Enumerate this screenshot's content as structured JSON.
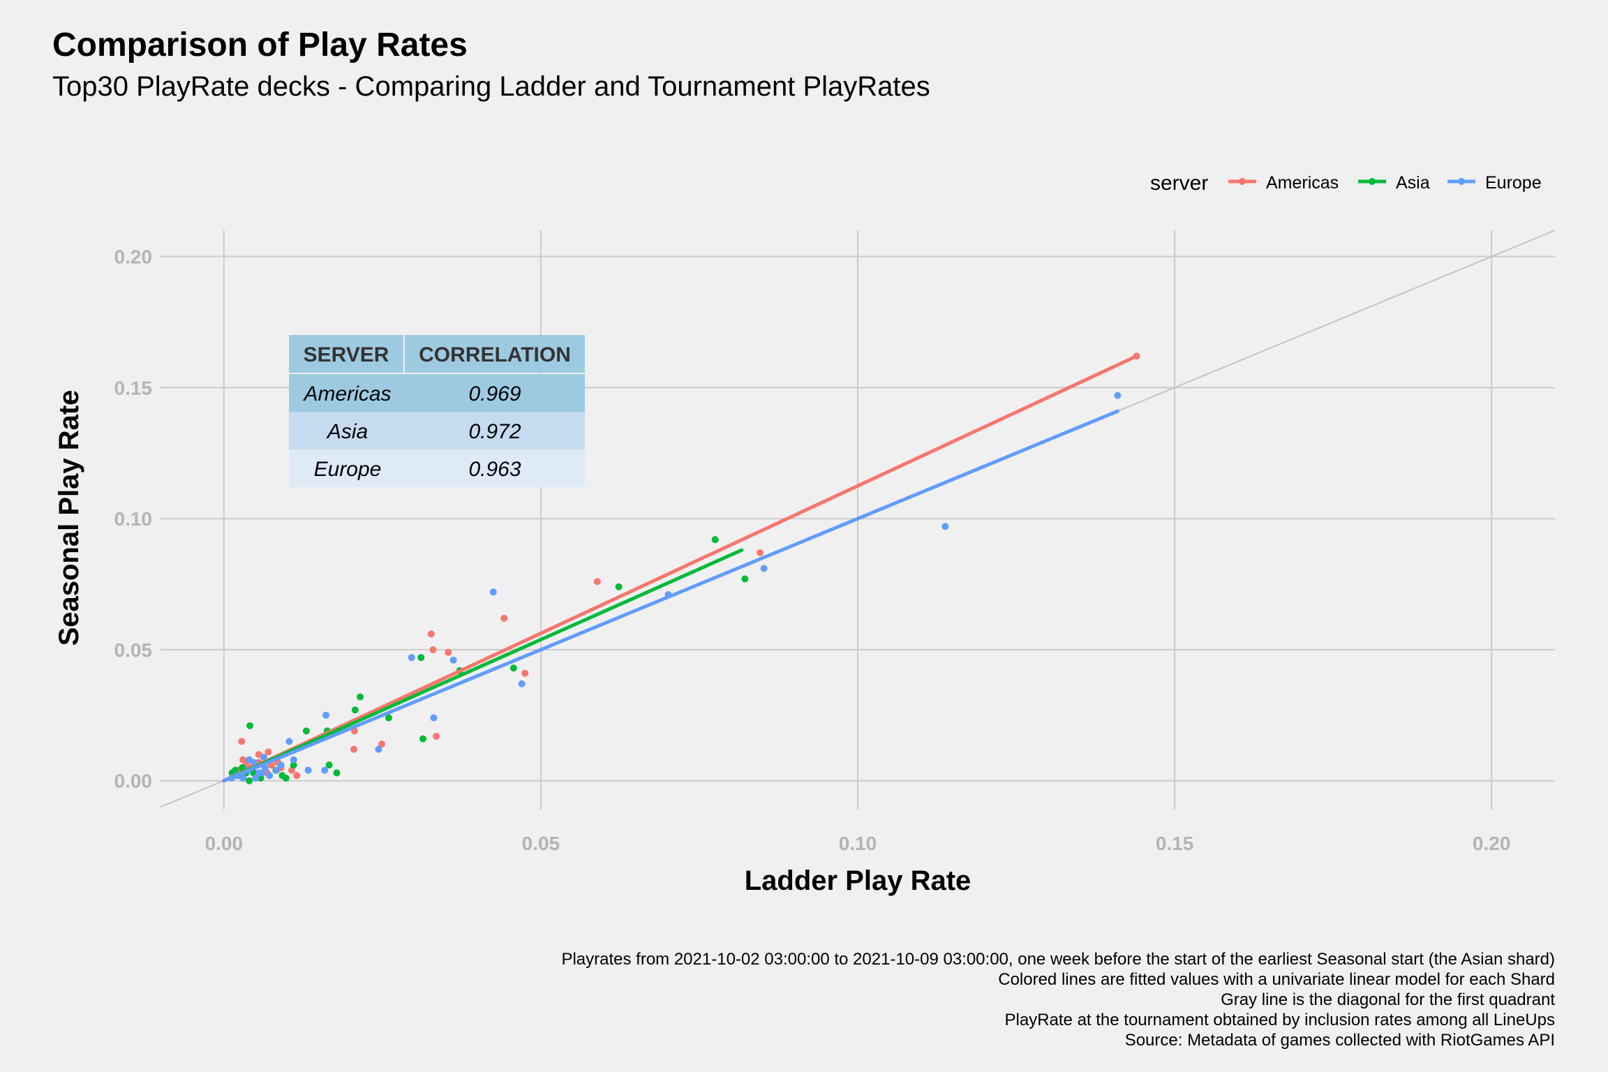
{
  "chart_data": {
    "type": "scatter",
    "title": "Comparison of Play Rates",
    "subtitle": "Top30 PlayRate decks - Comparing Ladder and Tournament PlayRates",
    "xlabel": "Ladder Play Rate",
    "ylabel": "Seasonal Play Rate",
    "xlim": [
      -0.01,
      0.21
    ],
    "ylim": [
      -0.011,
      0.21
    ],
    "x_ticks": [
      0.0,
      0.05,
      0.1,
      0.15,
      0.2
    ],
    "x_tick_labels": [
      "0.00",
      "0.05",
      "0.10",
      "0.15",
      "0.20"
    ],
    "y_ticks": [
      0.0,
      0.05,
      0.1,
      0.15,
      0.2
    ],
    "y_tick_labels": [
      "0.00",
      "0.05",
      "0.10",
      "0.15",
      "0.20"
    ],
    "grid": true,
    "legend": {
      "title": "server",
      "position": "top-right"
    },
    "diagonal": {
      "color": "#c4c4c4",
      "from": [
        -0.01,
        -0.01
      ],
      "to": [
        0.21,
        0.21
      ]
    },
    "series": [
      {
        "name": "Americas",
        "color": "#F8766D",
        "fit": {
          "x0": 0.0,
          "y0": 0.0,
          "x1": 0.144,
          "y1": 0.162
        },
        "points": [
          [
            0.144,
            0.162
          ],
          [
            0.0846,
            0.087
          ],
          [
            0.0589,
            0.076
          ],
          [
            0.0442,
            0.062
          ],
          [
            0.0475,
            0.041
          ],
          [
            0.0327,
            0.056
          ],
          [
            0.033,
            0.05
          ],
          [
            0.0354,
            0.049
          ],
          [
            0.0335,
            0.017
          ],
          [
            0.0206,
            0.019
          ],
          [
            0.0249,
            0.014
          ],
          [
            0.0205,
            0.012
          ],
          [
            0.0028,
            0.015
          ],
          [
            0.007,
            0.011
          ],
          [
            0.0055,
            0.01
          ],
          [
            0.0085,
            0.007
          ],
          [
            0.0107,
            0.004
          ],
          [
            0.0115,
            0.002
          ],
          [
            0.009,
            0.005
          ],
          [
            0.0035,
            0.006
          ],
          [
            0.0045,
            0.004
          ],
          [
            0.002,
            0.003
          ],
          [
            0.0055,
            0.007
          ],
          [
            0.003,
            0.008
          ],
          [
            0.0013,
            0.003
          ],
          [
            0.0075,
            0.006
          ],
          [
            0.004,
            0.005
          ],
          [
            0.0022,
            0.004
          ],
          [
            0.0068,
            0.003
          ],
          [
            0.005,
            0.002
          ]
        ]
      },
      {
        "name": "Asia",
        "color": "#00BA38",
        "fit": {
          "x0": 0.0,
          "y0": 0.0,
          "x1": 0.0817,
          "y1": 0.088
        },
        "points": [
          [
            0.0775,
            0.092
          ],
          [
            0.0822,
            0.077
          ],
          [
            0.0623,
            0.074
          ],
          [
            0.0457,
            0.043
          ],
          [
            0.0311,
            0.047
          ],
          [
            0.0372,
            0.042
          ],
          [
            0.0314,
            0.016
          ],
          [
            0.0215,
            0.032
          ],
          [
            0.0207,
            0.027
          ],
          [
            0.026,
            0.024
          ],
          [
            0.0163,
            0.019
          ],
          [
            0.013,
            0.019
          ],
          [
            0.0166,
            0.006
          ],
          [
            0.0178,
            0.003
          ],
          [
            0.0041,
            0.021
          ],
          [
            0.0092,
            0.002
          ],
          [
            0.0098,
            0.001
          ],
          [
            0.0029,
            0.005
          ],
          [
            0.0013,
            0.003
          ],
          [
            0.004,
            0.0
          ],
          [
            0.003,
            0.001
          ],
          [
            0.0052,
            0.002
          ],
          [
            0.0018,
            0.004
          ],
          [
            0.0065,
            0.005
          ],
          [
            0.0082,
            0.004
          ],
          [
            0.011,
            0.006
          ],
          [
            0.0025,
            0.002
          ],
          [
            0.0047,
            0.003
          ],
          [
            0.0058,
            0.001
          ],
          [
            0.0035,
            0.003
          ]
        ]
      },
      {
        "name": "Europe",
        "color": "#619CFF",
        "fit": {
          "x0": 0.0,
          "y0": 0.0,
          "x1": 0.141,
          "y1": 0.141
        },
        "points": [
          [
            0.141,
            0.147
          ],
          [
            0.1138,
            0.097
          ],
          [
            0.0852,
            0.081
          ],
          [
            0.0701,
            0.071
          ],
          [
            0.0425,
            0.072
          ],
          [
            0.047,
            0.037
          ],
          [
            0.0296,
            0.047
          ],
          [
            0.0362,
            0.046
          ],
          [
            0.0331,
            0.024
          ],
          [
            0.0161,
            0.025
          ],
          [
            0.0244,
            0.012
          ],
          [
            0.0103,
            0.015
          ],
          [
            0.0159,
            0.004
          ],
          [
            0.0133,
            0.004
          ],
          [
            0.011,
            0.008
          ],
          [
            0.0063,
            0.009
          ],
          [
            0.0065,
            0.005
          ],
          [
            0.0047,
            0.007
          ],
          [
            0.003,
            0.001
          ],
          [
            0.0083,
            0.004
          ],
          [
            0.0072,
            0.002
          ],
          [
            0.0055,
            0.003
          ],
          [
            0.002,
            0.002
          ],
          [
            0.0038,
            0.004
          ],
          [
            0.009,
            0.006
          ],
          [
            0.004,
            0.008
          ],
          [
            0.0012,
            0.001
          ],
          [
            0.005,
            0.001
          ],
          [
            0.006,
            0.003
          ],
          [
            0.0028,
            0.002
          ]
        ]
      }
    ],
    "table": {
      "headers": [
        "SERVER",
        "CORRELATION"
      ],
      "rows": [
        [
          "Americas",
          "0.969"
        ],
        [
          "Asia",
          "0.972"
        ],
        [
          "Europe",
          "0.963"
        ]
      ]
    },
    "captions": [
      "Playrates from 2021-10-02 03:00:00 to 2021-10-09 03:00:00, one week before the start of the earliest Seasonal start (the Asian shard)",
      "Colored lines are fitted values with a univariate linear model for each Shard",
      "Gray line is the diagonal for the first quadrant",
      "PlayRate at the tournament obtained by inclusion rates among all LineUps",
      "Source: Metadata of games collected with RiotGames API"
    ]
  }
}
